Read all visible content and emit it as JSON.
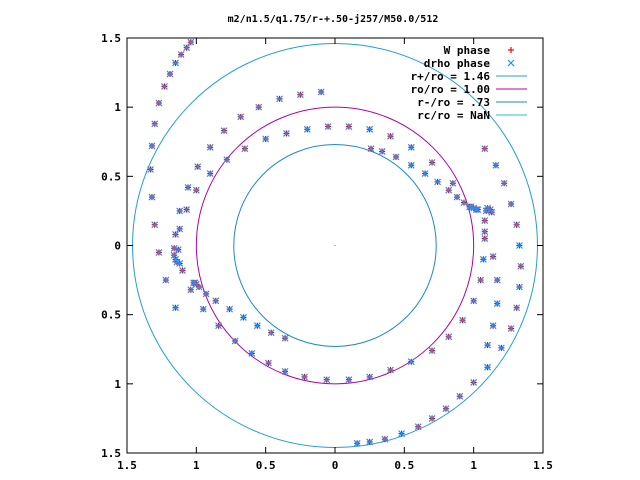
{
  "chart_data": {
    "type": "scatter",
    "title": "m2/n1.5/q1.75/r-+.50-j257/M50.0/512",
    "xlabel": "",
    "ylabel": "",
    "xlim": [
      -1.5,
      1.5
    ],
    "ylim": [
      -1.5,
      1.5
    ],
    "x_tick_values": [
      -1.5,
      -1,
      -0.5,
      0,
      0.5,
      1,
      1.5
    ],
    "x_tick_labels": [
      "1.5",
      "1",
      "0.5",
      "0",
      "0.5",
      "1",
      "1.5"
    ],
    "y_tick_values": [
      1.5,
      1,
      0.5,
      0,
      -0.5,
      -1,
      -1.5
    ],
    "y_tick_labels": [
      "1.5",
      "1",
      "0.5",
      "0",
      "0.5",
      "1",
      "1.5"
    ],
    "grid": false,
    "legend_position": "top-right",
    "legend": [
      {
        "label": "W phase",
        "marker": "plus",
        "color": "#ff0000"
      },
      {
        "label": "drho phase",
        "marker": "cross",
        "color": "#1e90ff"
      },
      {
        "label": "r+/ro = 1.46",
        "marker": "line",
        "color": "#1f9fd6"
      },
      {
        "label": "ro/ro = 1.00",
        "marker": "line",
        "color": "#b000b0"
      },
      {
        "label": "r-/ro = .73",
        "marker": "line",
        "color": "#1a8ad0"
      },
      {
        "label": "rc/ro = NaN",
        "marker": "line",
        "color": "#20c0d0"
      }
    ],
    "circles": [
      {
        "name": "r+/ro = 1.46",
        "radius": 1.46,
        "color": "#1f9fd6"
      },
      {
        "name": "ro/ro = 1.00",
        "radius": 1.0,
        "color": "#b000b0"
      },
      {
        "name": "r-/ro = .73",
        "radius": 0.73,
        "color": "#1a8ad0"
      }
    ],
    "series": [
      {
        "name": "W phase",
        "marker": "plus",
        "color": "#ff0000",
        "x": [
          0.16,
          0.25,
          0.36,
          0.48,
          0.6,
          0.7,
          0.8,
          0.9,
          1.0,
          1.1,
          1.2,
          1.27,
          1.31,
          1.33,
          1.34,
          1.33,
          1.31,
          1.27,
          1.22,
          1.16,
          1.08,
          1.1,
          1.14,
          1.17,
          1.17,
          1.14,
          1.08,
          0.98,
          0.85,
          0.7,
          0.55,
          0.4,
          0.25,
          0.1,
          -0.05,
          -0.2,
          -0.35,
          -0.5,
          -0.65,
          -0.78,
          -0.9,
          -1.0,
          -1.07,
          -1.12,
          -1.13,
          -1.1,
          -1.04,
          -0.95,
          -0.84,
          -0.72,
          -0.6,
          -0.48,
          -0.36,
          -0.22,
          -0.06,
          0.1,
          0.25,
          0.4,
          0.55,
          0.7,
          0.82,
          0.92,
          1.0,
          1.05,
          1.07,
          1.08,
          1.08,
          1.09,
          1.1,
          1.12,
          1.13,
          -0.1,
          -0.25,
          -0.4,
          -0.55,
          -0.68,
          -0.8,
          -0.9,
          -0.99,
          -1.06,
          -1.12,
          -1.15,
          -1.16,
          -1.16,
          -1.15,
          -1.14,
          -1.12,
          0.26,
          0.34,
          0.44,
          0.55,
          0.65,
          0.74,
          0.82,
          0.88,
          0.93,
          0.97,
          1.0,
          1.02,
          1.03,
          -0.36,
          -0.46,
          -0.56,
          -0.66,
          -0.76,
          -0.86,
          -0.93,
          -0.98,
          -1.0,
          -1.01,
          -1.02,
          -1.04,
          -1.07,
          -1.11,
          -1.15,
          -1.19,
          -1.23,
          -1.27,
          -1.3,
          -1.32,
          -1.33,
          -1.32,
          -1.3,
          -1.27,
          -1.22,
          -1.15
        ],
        "y": [
          -1.43,
          -1.42,
          -1.4,
          -1.36,
          -1.31,
          -1.25,
          -1.18,
          -1.09,
          -0.99,
          -0.88,
          -0.74,
          -0.6,
          -0.45,
          -0.3,
          -0.15,
          0.0,
          0.15,
          0.3,
          0.45,
          0.58,
          0.7,
          -0.72,
          -0.58,
          -0.42,
          -0.25,
          -0.08,
          0.1,
          0.28,
          0.45,
          0.6,
          0.71,
          0.79,
          0.84,
          0.86,
          0.86,
          0.84,
          0.81,
          0.77,
          0.7,
          0.62,
          0.52,
          0.4,
          0.26,
          0.12,
          -0.03,
          -0.18,
          -0.32,
          -0.46,
          -0.58,
          -0.69,
          -0.78,
          -0.85,
          -0.91,
          -0.95,
          -0.97,
          -0.97,
          -0.95,
          -0.9,
          -0.84,
          -0.76,
          -0.66,
          -0.54,
          -0.4,
          -0.25,
          -0.1,
          0.05,
          0.18,
          0.25,
          0.27,
          0.26,
          0.24,
          1.11,
          1.09,
          1.06,
          1.0,
          0.93,
          0.83,
          0.71,
          0.57,
          0.42,
          0.25,
          0.08,
          -0.02,
          -0.07,
          -0.1,
          -0.12,
          -0.13,
          0.7,
          0.68,
          0.64,
          0.58,
          0.52,
          0.46,
          0.4,
          0.35,
          0.31,
          0.28,
          0.27,
          0.26,
          0.26,
          -0.67,
          -0.63,
          -0.58,
          -0.52,
          -0.46,
          -0.4,
          -0.35,
          -0.3,
          -0.28,
          -0.27,
          -0.27,
          1.47,
          1.43,
          1.38,
          1.32,
          1.24,
          1.15,
          1.03,
          0.88,
          0.72,
          0.55,
          0.35,
          0.15,
          -0.05,
          -0.25,
          -0.45
        ]
      },
      {
        "name": "drho phase",
        "marker": "cross",
        "color": "#1e90ff",
        "x": [
          0.16,
          0.25,
          0.36,
          0.48,
          0.6,
          0.7,
          0.8,
          0.9,
          1.0,
          1.1,
          1.2,
          1.27,
          1.31,
          1.33,
          1.34,
          1.33,
          1.31,
          1.27,
          1.22,
          1.16,
          1.08,
          1.1,
          1.14,
          1.17,
          1.17,
          1.14,
          1.08,
          0.98,
          0.85,
          0.7,
          0.55,
          0.4,
          0.25,
          0.1,
          -0.05,
          -0.2,
          -0.35,
          -0.5,
          -0.65,
          -0.78,
          -0.9,
          -1.0,
          -1.07,
          -1.12,
          -1.13,
          -1.1,
          -1.04,
          -0.95,
          -0.84,
          -0.72,
          -0.6,
          -0.48,
          -0.36,
          -0.22,
          -0.06,
          0.1,
          0.25,
          0.4,
          0.55,
          0.7,
          0.82,
          0.92,
          1.0,
          1.05,
          1.07,
          1.08,
          1.08,
          1.09,
          1.1,
          1.12,
          1.13,
          -0.1,
          -0.25,
          -0.4,
          -0.55,
          -0.68,
          -0.8,
          -0.9,
          -0.99,
          -1.06,
          -1.12,
          -1.15,
          -1.16,
          -1.16,
          -1.15,
          -1.14,
          -1.12,
          0.26,
          0.34,
          0.44,
          0.55,
          0.65,
          0.74,
          0.82,
          0.88,
          0.93,
          0.97,
          1.0,
          1.02,
          1.03,
          -0.36,
          -0.46,
          -0.56,
          -0.66,
          -0.76,
          -0.86,
          -0.93,
          -0.98,
          -1.0,
          -1.01,
          -1.02,
          -1.04,
          -1.07,
          -1.11,
          -1.15,
          -1.19,
          -1.23,
          -1.27,
          -1.3,
          -1.32,
          -1.33,
          -1.32,
          -1.3,
          -1.27,
          -1.22,
          -1.15
        ],
        "y": [
          -1.43,
          -1.42,
          -1.4,
          -1.36,
          -1.31,
          -1.25,
          -1.18,
          -1.09,
          -0.99,
          -0.88,
          -0.74,
          -0.6,
          -0.45,
          -0.3,
          -0.15,
          0.0,
          0.15,
          0.3,
          0.45,
          0.58,
          0.7,
          -0.72,
          -0.58,
          -0.42,
          -0.25,
          -0.08,
          0.1,
          0.28,
          0.45,
          0.6,
          0.71,
          0.79,
          0.84,
          0.86,
          0.86,
          0.84,
          0.81,
          0.77,
          0.7,
          0.62,
          0.52,
          0.4,
          0.26,
          0.12,
          -0.03,
          -0.18,
          -0.32,
          -0.46,
          -0.58,
          -0.69,
          -0.78,
          -0.85,
          -0.91,
          -0.95,
          -0.97,
          -0.97,
          -0.95,
          -0.9,
          -0.84,
          -0.76,
          -0.66,
          -0.54,
          -0.4,
          -0.25,
          -0.1,
          0.05,
          0.18,
          0.25,
          0.27,
          0.26,
          0.24,
          1.11,
          1.09,
          1.06,
          1.0,
          0.93,
          0.83,
          0.71,
          0.57,
          0.42,
          0.25,
          0.08,
          -0.02,
          -0.07,
          -0.1,
          -0.12,
          -0.13,
          0.7,
          0.68,
          0.64,
          0.58,
          0.52,
          0.46,
          0.4,
          0.35,
          0.31,
          0.28,
          0.27,
          0.26,
          0.26,
          -0.67,
          -0.63,
          -0.58,
          -0.52,
          -0.46,
          -0.4,
          -0.35,
          -0.3,
          -0.28,
          -0.27,
          -0.27,
          1.47,
          1.43,
          1.38,
          1.32,
          1.24,
          1.15,
          1.03,
          0.88,
          0.72,
          0.55,
          0.35,
          0.15,
          -0.05,
          -0.25,
          -0.45
        ]
      }
    ]
  }
}
